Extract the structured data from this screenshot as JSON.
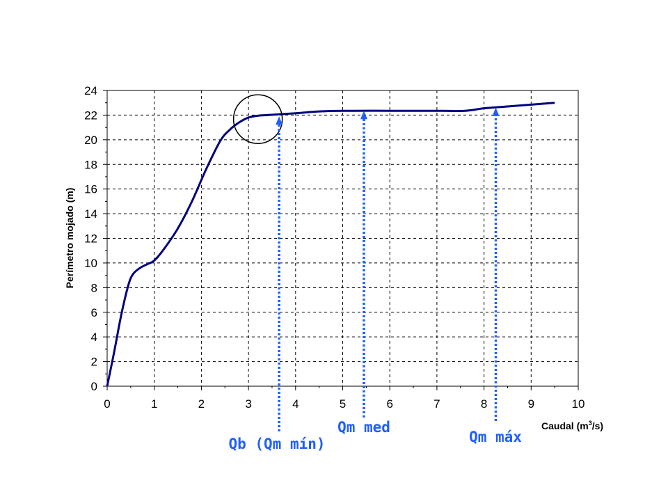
{
  "chart_data": {
    "type": "line",
    "title": "",
    "xlabel": "Caudal (m",
    "xlabel_sup": "3",
    "xlabel_end": "/s)",
    "ylabel": "Perímetro mojado (m)",
    "xlim": [
      0,
      10
    ],
    "ylim": [
      0,
      24
    ],
    "x_ticks": [
      "0",
      "1",
      "2",
      "3",
      "4",
      "5",
      "6",
      "7",
      "8",
      "9",
      "10"
    ],
    "y_ticks": [
      "0",
      "2",
      "4",
      "6",
      "8",
      "10",
      "12",
      "14",
      "16",
      "18",
      "20",
      "22",
      "24"
    ],
    "grid": true,
    "legend": "none",
    "series": [
      {
        "color": "#000080",
        "x": [
          0,
          0.15,
          0.3,
          0.45,
          0.55,
          0.7,
          0.85,
          1.0,
          1.2,
          1.5,
          1.8,
          2.1,
          2.4,
          2.6,
          2.8,
          3.0,
          3.2,
          3.4,
          3.6,
          4.0,
          4.5,
          5.0,
          6.0,
          7.0,
          7.6,
          8.0,
          8.5,
          9.0,
          9.5
        ],
        "y": [
          0,
          2.8,
          5.8,
          8.2,
          9.1,
          9.6,
          9.9,
          10.2,
          11.1,
          12.8,
          15.0,
          17.6,
          19.9,
          20.8,
          21.4,
          21.8,
          21.95,
          22.0,
          22.05,
          22.15,
          22.3,
          22.35,
          22.35,
          22.35,
          22.35,
          22.55,
          22.7,
          22.85,
          23.0
        ]
      }
    ],
    "highlight_circle": {
      "x": 3.2,
      "y": 21.9
    },
    "annotations": [
      {
        "name": "qb",
        "label": "Qb (Qm mín)",
        "x": 3.65,
        "y": 21.9,
        "color": "#1f5fff"
      },
      {
        "name": "qm-med",
        "label": "Qm med",
        "x": 5.45,
        "y": 22.35,
        "color": "#1f5fff"
      },
      {
        "name": "qm-max",
        "label": "Qm máx",
        "x": 8.25,
        "y": 22.6,
        "color": "#1f5fff"
      }
    ]
  }
}
